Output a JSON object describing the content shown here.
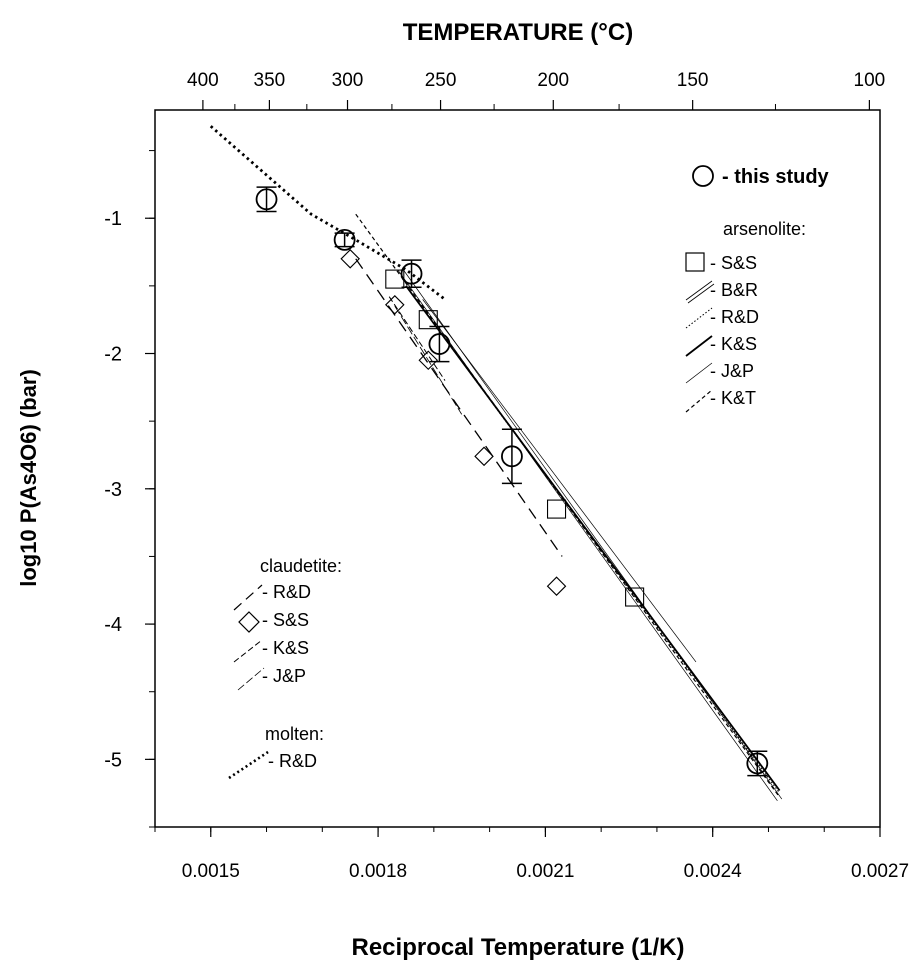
{
  "chart_data": {
    "type": "scatter",
    "xlabel": "Reciprocal Temperature (1/K)",
    "ylabel": "log10 P(As4O6)  (bar)",
    "top_xlabel": "TEMPERATURE (°C)",
    "xlim": [
      0.0014,
      0.0027
    ],
    "ylim": [
      -5.5,
      -0.2
    ],
    "x_ticks": [
      0.0015,
      0.0018,
      0.0021,
      0.0024,
      0.0027
    ],
    "x_tick_labels": [
      "0.0015",
      "0.0018",
      "0.0021",
      "0.0024",
      "0.0027"
    ],
    "y_ticks": [
      -1,
      -2,
      -3,
      -4,
      -5
    ],
    "y_tick_labels": [
      "-1",
      "-2",
      "-3",
      "-4",
      "-5"
    ],
    "top_ticks_celsius": [
      400,
      350,
      300,
      250,
      200,
      150,
      100
    ],
    "top_tick_labels": [
      "400",
      "350",
      "300",
      "250",
      "200",
      "150",
      "100"
    ],
    "series": [
      {
        "name": "this study",
        "marker": "circle",
        "points": [
          {
            "x": 0.0016,
            "y": -0.86,
            "err": 0.09
          },
          {
            "x": 0.00174,
            "y": -1.16,
            "err": 0.05
          },
          {
            "x": 0.00186,
            "y": -1.41,
            "err": 0.1
          },
          {
            "x": 0.00191,
            "y": -1.93,
            "err": 0.13
          },
          {
            "x": 0.00204,
            "y": -2.76,
            "err": 0.2
          },
          {
            "x": 0.00248,
            "y": -5.03,
            "err": 0.09
          }
        ]
      },
      {
        "name": "S&S",
        "group": "arsenolite",
        "marker": "square",
        "points": [
          {
            "x": 0.00183,
            "y": -1.45
          },
          {
            "x": 0.00189,
            "y": -1.75
          },
          {
            "x": 0.00212,
            "y": -3.15
          },
          {
            "x": 0.00226,
            "y": -3.8
          }
        ]
      },
      {
        "name": "S&S",
        "group": "claudetite",
        "marker": "diamond",
        "points": [
          {
            "x": 0.00175,
            "y": -1.3
          },
          {
            "x": 0.00183,
            "y": -1.64
          },
          {
            "x": 0.00189,
            "y": -2.05
          },
          {
            "x": 0.00199,
            "y": -2.76
          },
          {
            "x": 0.00212,
            "y": -3.72
          }
        ]
      }
    ],
    "lines": [
      {
        "name": "B&R",
        "group": "arsenolite",
        "style": "double",
        "points": [
          [
            0.00184,
            -1.38
          ],
          [
            0.00252,
            -5.3
          ]
        ]
      },
      {
        "name": "R&D",
        "group": "arsenolite",
        "style": "dotted",
        "points": [
          [
            0.00185,
            -1.5
          ],
          [
            0.00252,
            -5.25
          ]
        ]
      },
      {
        "name": "K&S",
        "group": "arsenolite",
        "style": "solid-bold",
        "points": [
          [
            0.00185,
            -1.5
          ],
          [
            0.00252,
            -5.23
          ]
        ]
      },
      {
        "name": "J&P",
        "group": "arsenolite",
        "style": "thin",
        "points": [
          [
            0.00188,
            -1.6
          ],
          [
            0.00237,
            -4.28
          ]
        ]
      },
      {
        "name": "K&T",
        "group": "arsenolite",
        "style": "short-dash",
        "points": [
          [
            0.00176,
            -0.97
          ],
          [
            0.00252,
            -5.28
          ]
        ]
      },
      {
        "name": "R&D",
        "group": "claudetite",
        "style": "long-dash",
        "points": [
          [
            0.00176,
            -1.3
          ],
          [
            0.00213,
            -3.5
          ]
        ]
      },
      {
        "name": "K&S",
        "group": "claudetite",
        "style": "dash-fine",
        "points": [
          [
            0.00182,
            -1.58
          ],
          [
            0.00192,
            -2.2
          ]
        ]
      },
      {
        "name": "J&P",
        "group": "claudetite",
        "style": "thin-dash",
        "points": [
          [
            0.00183,
            -1.65
          ],
          [
            0.00195,
            -2.45
          ]
        ]
      },
      {
        "name": "R&D",
        "group": "molten",
        "style": "heavy-dotted",
        "points": [
          [
            0.0015,
            -0.32
          ],
          [
            0.00168,
            -0.97
          ],
          [
            0.00176,
            -1.16
          ],
          [
            0.00185,
            -1.38
          ],
          [
            0.00192,
            -1.6
          ]
        ]
      }
    ],
    "legend": {
      "this_study": {
        "label": "- this study"
      },
      "arsenolite": {
        "title": "arsenolite:",
        "items": [
          {
            "label": "- S&S",
            "symbol": "square"
          },
          {
            "label": "- B&R",
            "symbol": "double"
          },
          {
            "label": "- R&D",
            "symbol": "dotted"
          },
          {
            "label": "- K&S",
            "symbol": "solid-bold"
          },
          {
            "label": "- J&P",
            "symbol": "thin"
          },
          {
            "label": "- K&T",
            "symbol": "short-dash"
          }
        ]
      },
      "claudetite": {
        "title": "claudetite:",
        "items": [
          {
            "label": "- R&D",
            "symbol": "long-dash"
          },
          {
            "label": "- S&S",
            "symbol": "diamond"
          },
          {
            "label": "- K&S",
            "symbol": "dash-fine"
          },
          {
            "label": "- J&P",
            "symbol": "thin-dash"
          }
        ]
      },
      "molten": {
        "title": "molten:",
        "items": [
          {
            "label": "- R&D",
            "symbol": "heavy-dotted"
          }
        ]
      }
    }
  }
}
